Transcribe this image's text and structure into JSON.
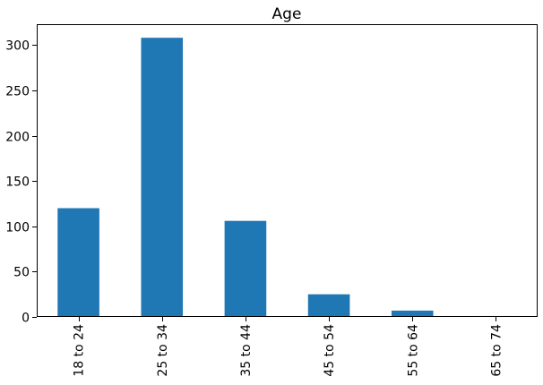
{
  "chart_data": {
    "type": "bar",
    "title": "Age",
    "xlabel": "",
    "ylabel": "",
    "categories": [
      "18 to 24",
      "25 to 34",
      "35 to 44",
      "45 to 54",
      "55 to 64",
      "65 to 74"
    ],
    "values": [
      120,
      308,
      106,
      25,
      7,
      1
    ],
    "ylim": [
      0,
      323
    ],
    "yticks": [
      0,
      50,
      100,
      150,
      200,
      250,
      300
    ],
    "grid": false,
    "legend": "none",
    "bar_color": "#1f77b4"
  }
}
